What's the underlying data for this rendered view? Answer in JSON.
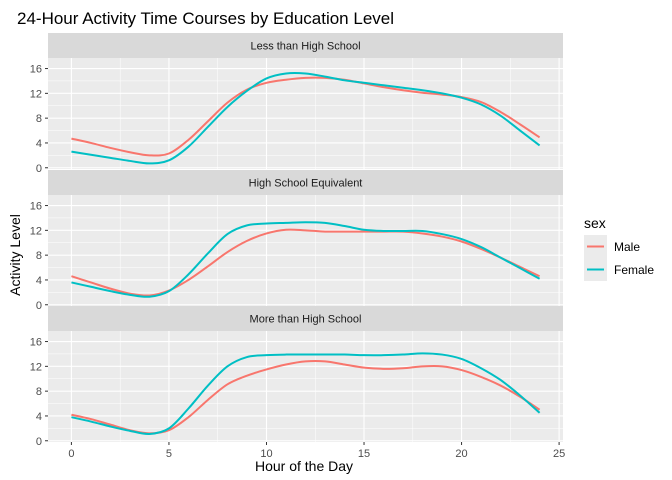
{
  "chart_data": {
    "type": "line",
    "title": "24-Hour Activity Time Courses by Education Level",
    "xlabel": "Hour of the Day",
    "ylabel": "Activity Level",
    "xlim": [
      -1.2,
      25.2
    ],
    "ylim": [
      -0.2,
      17.7
    ],
    "xticks": [
      0,
      5,
      10,
      15,
      20,
      25
    ],
    "yticks": [
      0,
      4,
      8,
      12,
      16
    ],
    "grid": true,
    "legend": {
      "title": "sex",
      "position": "right",
      "entries": [
        {
          "name": "Male",
          "color": "#F8766D"
        },
        {
          "name": "Female",
          "color": "#00BFC4"
        }
      ]
    },
    "panels": [
      {
        "label": "Less than High School",
        "series": [
          {
            "name": "Male",
            "color": "#F8766D",
            "x": [
              0,
              1,
              2,
              3,
              4,
              5,
              6,
              7,
              8,
              9,
              10,
              11,
              12,
              13,
              14,
              15,
              16,
              17,
              18,
              19,
              20,
              21,
              22,
              23,
              24
            ],
            "y": [
              4.7,
              4.0,
              3.2,
              2.5,
              2.0,
              2.3,
              4.5,
              7.5,
              10.5,
              12.6,
              13.7,
              14.2,
              14.5,
              14.5,
              14.2,
              13.6,
              13.0,
              12.5,
              12.1,
              11.8,
              11.4,
              10.6,
              9.0,
              7.0,
              4.9
            ]
          },
          {
            "name": "Female",
            "color": "#00BFC4",
            "x": [
              0,
              1,
              2,
              3,
              4,
              5,
              6,
              7,
              8,
              9,
              10,
              11,
              12,
              13,
              14,
              15,
              16,
              17,
              18,
              19,
              20,
              21,
              22,
              23,
              24
            ],
            "y": [
              2.6,
              2.1,
              1.6,
              1.1,
              0.7,
              1.2,
              3.4,
              6.6,
              9.8,
              12.4,
              14.4,
              15.2,
              15.2,
              14.7,
              14.1,
              13.7,
              13.3,
              12.9,
              12.5,
              12.0,
              11.3,
              10.2,
              8.4,
              6.0,
              3.6
            ]
          }
        ]
      },
      {
        "label": "High School Equivalent",
        "series": [
          {
            "name": "Male",
            "color": "#F8766D",
            "x": [
              0,
              1,
              2,
              3,
              4,
              5,
              6,
              7,
              8,
              9,
              10,
              11,
              12,
              13,
              14,
              15,
              16,
              17,
              18,
              19,
              20,
              21,
              22,
              23,
              24
            ],
            "y": [
              4.6,
              3.6,
              2.6,
              1.8,
              1.5,
              2.3,
              4.0,
              6.2,
              8.5,
              10.3,
              11.5,
              12.1,
              12.0,
              11.8,
              11.8,
              11.8,
              11.8,
              11.8,
              11.5,
              11.0,
              10.2,
              9.0,
              7.6,
              6.1,
              4.6
            ]
          },
          {
            "name": "Female",
            "color": "#00BFC4",
            "x": [
              0,
              1,
              2,
              3,
              4,
              5,
              6,
              7,
              8,
              9,
              10,
              11,
              12,
              13,
              14,
              15,
              16,
              17,
              18,
              19,
              20,
              21,
              22,
              23,
              24
            ],
            "y": [
              3.6,
              2.9,
              2.2,
              1.6,
              1.3,
              2.2,
              4.9,
              8.3,
              11.4,
              12.8,
              13.1,
              13.2,
              13.3,
              13.2,
              12.7,
              12.1,
              11.9,
              11.9,
              11.9,
              11.4,
              10.6,
              9.3,
              7.6,
              5.9,
              4.2
            ]
          }
        ]
      },
      {
        "label": "More than High School",
        "series": [
          {
            "name": "Male",
            "color": "#F8766D",
            "x": [
              0,
              1,
              2,
              3,
              4,
              5,
              6,
              7,
              8,
              9,
              10,
              11,
              12,
              13,
              14,
              15,
              16,
              17,
              18,
              19,
              20,
              21,
              22,
              23,
              24
            ],
            "y": [
              4.2,
              3.5,
              2.6,
              1.7,
              1.2,
              1.7,
              3.8,
              6.6,
              9.1,
              10.5,
              11.5,
              12.3,
              12.8,
              12.8,
              12.3,
              11.8,
              11.6,
              11.7,
              12.0,
              12.0,
              11.4,
              10.3,
              8.9,
              7.1,
              5.0
            ]
          },
          {
            "name": "Female",
            "color": "#00BFC4",
            "x": [
              0,
              1,
              2,
              3,
              4,
              5,
              6,
              7,
              8,
              9,
              10,
              11,
              12,
              13,
              14,
              15,
              16,
              17,
              18,
              19,
              20,
              21,
              22,
              23,
              24
            ],
            "y": [
              3.8,
              3.1,
              2.3,
              1.6,
              1.1,
              2.0,
              5.2,
              8.9,
              12.0,
              13.5,
              13.8,
              13.9,
              13.9,
              13.9,
              13.9,
              13.8,
              13.8,
              13.9,
              14.1,
              13.9,
              13.2,
              11.7,
              9.8,
              7.3,
              4.5
            ]
          }
        ]
      }
    ]
  }
}
